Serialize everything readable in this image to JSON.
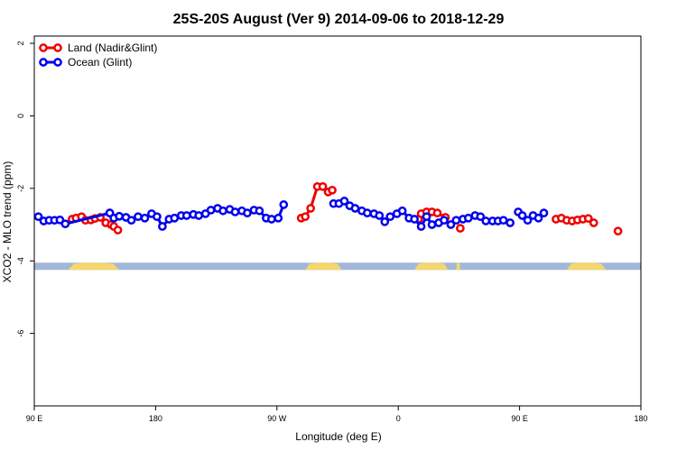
{
  "chart_data": {
    "type": "line",
    "title": "25S-20S August (Ver 9)   2014-09-06 to 2018-12-29",
    "xlabel": "Longitude (deg E)",
    "ylabel": "XCO2 - MLO trend (ppm)",
    "xlim": [
      90,
      540
    ],
    "ylim": [
      -8.0,
      2.2
    ],
    "xticks": [
      {
        "value": 90,
        "label": "90 E"
      },
      {
        "value": 180,
        "label": "180"
      },
      {
        "value": 270,
        "label": "90 W"
      },
      {
        "value": 360,
        "label": "0"
      },
      {
        "value": 450,
        "label": "90 E"
      },
      {
        "value": 540,
        "label": "180"
      }
    ],
    "yticks": [
      {
        "value": 2,
        "label": "2"
      },
      {
        "value": 0,
        "label": "0"
      },
      {
        "value": -2,
        "label": "-2"
      },
      {
        "value": -4,
        "label": "-4"
      },
      {
        "value": -6,
        "label": "-6"
      }
    ],
    "grid": false,
    "legend_position": "top-left",
    "colors": {
      "land": "#ee0000",
      "ocean": "#0000ee",
      "ocean_band": "#a3b8d8",
      "land_band": "#f5d76e"
    },
    "series": [
      {
        "name": "Land (Nadir&Glint)",
        "color": "#ee0000",
        "segments": [
          [
            [
              118,
              -2.85
            ],
            [
              121,
              -2.82
            ],
            [
              125,
              -2.78
            ],
            [
              128,
              -2.88
            ],
            [
              132,
              -2.87
            ],
            [
              135,
              -2.83
            ],
            [
              139,
              -2.8
            ],
            [
              143,
              -2.95
            ],
            [
              147,
              -3.0
            ],
            [
              149,
              -3.05
            ],
            [
              152,
              -3.15
            ]
          ],
          [
            [
              288,
              -2.82
            ],
            [
              291,
              -2.78
            ],
            [
              295,
              -2.55
            ],
            [
              300,
              -1.95
            ],
            [
              304,
              -1.95
            ],
            [
              308,
              -2.1
            ],
            [
              311,
              -2.05
            ]
          ],
          [
            [
              375,
              -2.85
            ],
            [
              377,
              -2.7
            ],
            [
              381,
              -2.65
            ],
            [
              385,
              -2.65
            ],
            [
              389,
              -2.68
            ],
            [
              395,
              -2.8
            ]
          ],
          [
            [
              406,
              -3.1
            ]
          ],
          [
            [
              477,
              -2.85
            ],
            [
              481,
              -2.82
            ],
            [
              485,
              -2.88
            ],
            [
              489,
              -2.9
            ],
            [
              493,
              -2.87
            ],
            [
              497,
              -2.85
            ],
            [
              501,
              -2.83
            ],
            [
              505,
              -2.95
            ]
          ],
          [
            [
              523,
              -3.18
            ]
          ]
        ]
      },
      {
        "name": "Ocean (Glint)",
        "color": "#0000ee",
        "segments": [
          [
            [
              93,
              -2.78
            ],
            [
              97,
              -2.9
            ],
            [
              101,
              -2.88
            ],
            [
              105,
              -2.88
            ],
            [
              109,
              -2.87
            ],
            [
              113,
              -2.98
            ],
            [
              146,
              -2.68
            ]
          ],
          [
            [
              146,
              -2.68
            ],
            [
              149,
              -2.82
            ],
            [
              153,
              -2.77
            ],
            [
              158,
              -2.8
            ],
            [
              162,
              -2.88
            ],
            [
              167,
              -2.78
            ],
            [
              172,
              -2.82
            ],
            [
              177,
              -2.7
            ],
            [
              181,
              -2.78
            ],
            [
              185,
              -3.05
            ],
            [
              190,
              -2.85
            ],
            [
              194,
              -2.82
            ],
            [
              199,
              -2.75
            ],
            [
              203,
              -2.75
            ],
            [
              208,
              -2.72
            ],
            [
              212,
              -2.75
            ],
            [
              217,
              -2.7
            ],
            [
              221,
              -2.6
            ],
            [
              226,
              -2.55
            ],
            [
              230,
              -2.62
            ],
            [
              235,
              -2.58
            ],
            [
              239,
              -2.65
            ],
            [
              244,
              -2.62
            ],
            [
              248,
              -2.68
            ],
            [
              253,
              -2.6
            ],
            [
              257,
              -2.62
            ],
            [
              262,
              -2.82
            ],
            [
              266,
              -2.85
            ],
            [
              271,
              -2.82
            ],
            [
              275,
              -2.45
            ]
          ],
          [
            [
              312,
              -2.42
            ],
            [
              316,
              -2.42
            ],
            [
              320,
              -2.35
            ],
            [
              324,
              -2.48
            ],
            [
              328,
              -2.55
            ],
            [
              333,
              -2.62
            ],
            [
              337,
              -2.68
            ],
            [
              342,
              -2.7
            ],
            [
              346,
              -2.75
            ],
            [
              350,
              -2.92
            ],
            [
              354,
              -2.78
            ],
            [
              359,
              -2.7
            ],
            [
              363,
              -2.62
            ],
            [
              368,
              -2.82
            ],
            [
              372,
              -2.85
            ],
            [
              377,
              -3.05
            ],
            [
              381,
              -2.78
            ],
            [
              385,
              -3.0
            ],
            [
              390,
              -2.95
            ],
            [
              394,
              -2.88
            ],
            [
              399,
              -3.0
            ],
            [
              403,
              -2.88
            ],
            [
              408,
              -2.85
            ],
            [
              412,
              -2.82
            ],
            [
              417,
              -2.75
            ],
            [
              421,
              -2.78
            ],
            [
              425,
              -2.9
            ],
            [
              430,
              -2.9
            ],
            [
              434,
              -2.9
            ],
            [
              438,
              -2.88
            ],
            [
              443,
              -2.95
            ]
          ],
          [
            [
              449,
              -2.65
            ],
            [
              452,
              -2.75
            ],
            [
              456,
              -2.88
            ],
            [
              460,
              -2.75
            ],
            [
              464,
              -2.82
            ],
            [
              468,
              -2.68
            ]
          ]
        ]
      }
    ],
    "surface_band": {
      "y_range": [
        -4.25,
        -4.05
      ],
      "land_bumps_x": [
        [
          115,
          153
        ],
        [
          291,
          318
        ],
        [
          372,
          397
        ],
        [
          403,
          406
        ],
        [
          485,
          514
        ]
      ]
    }
  }
}
